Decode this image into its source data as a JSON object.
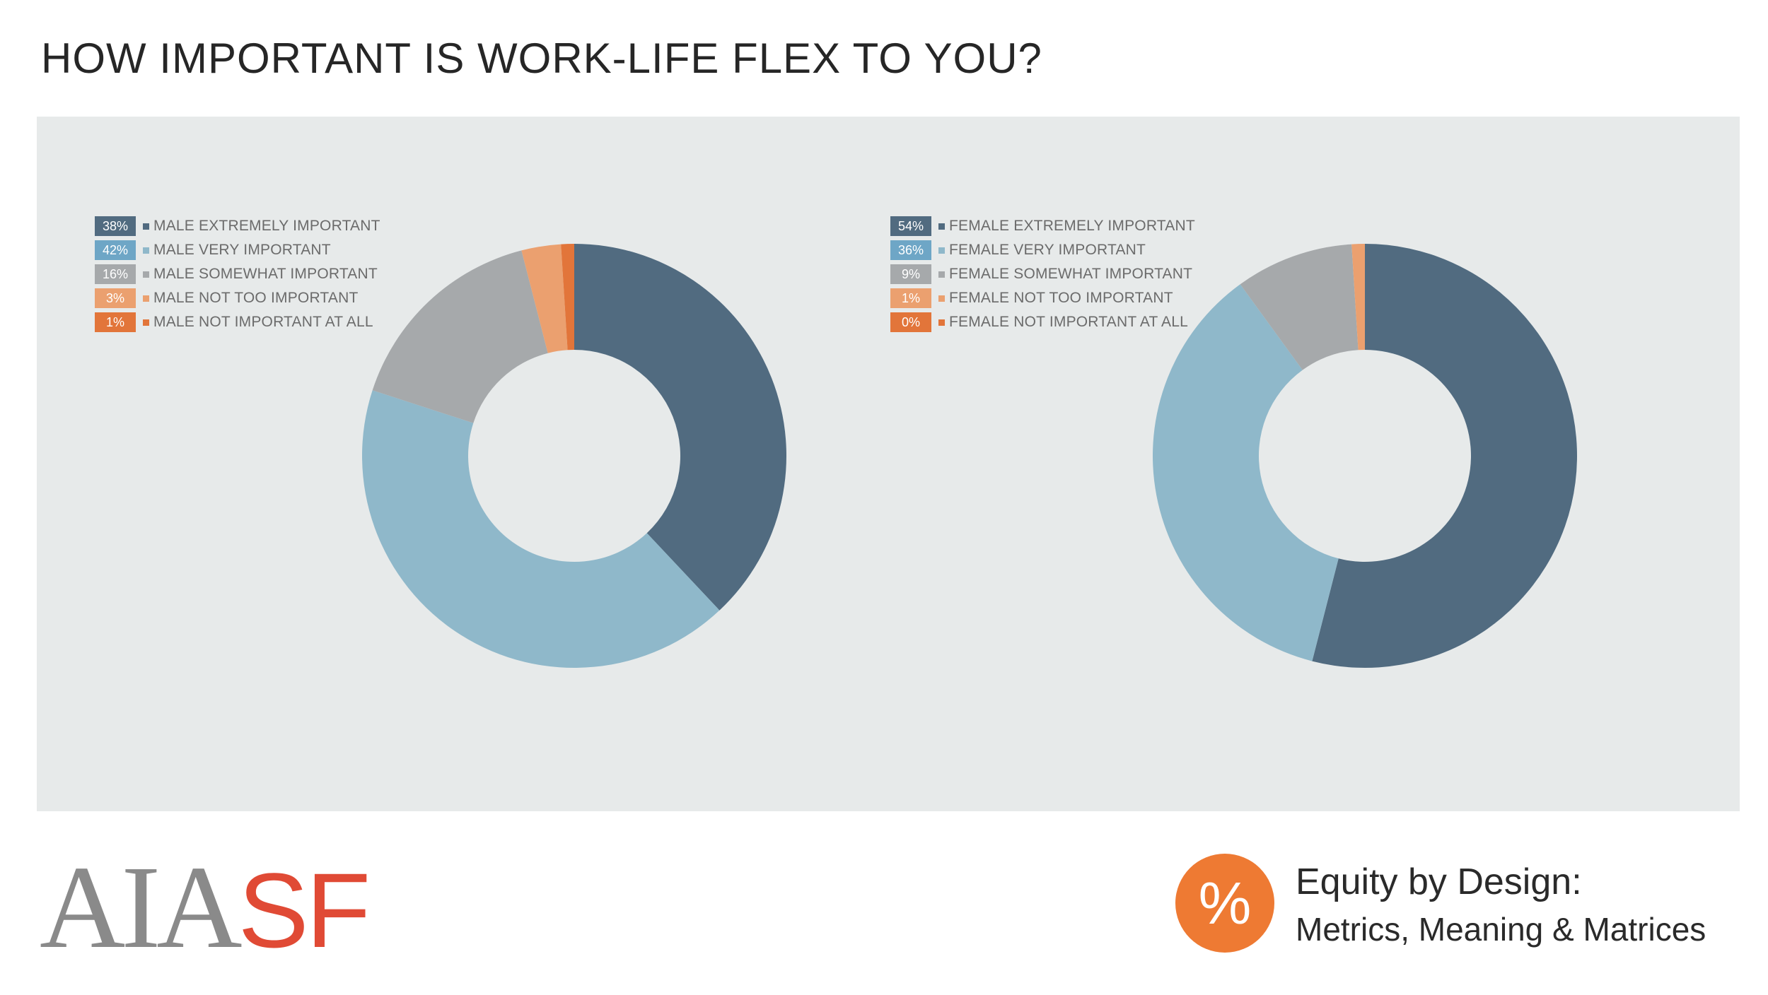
{
  "title": "HOW IMPORTANT IS WORK-LIFE FLEX TO YOU?",
  "colors": {
    "extremely": "#516b80",
    "very": "#8fb8ca",
    "somewhat": "#a6a9ab",
    "not_too": "#eba06f",
    "not_at_all": "#e2753a",
    "badge_very": "#6ea6c6",
    "panel": "#e7eaea"
  },
  "chart_data": [
    {
      "type": "pie",
      "categories": [
        "MALE EXTREMELY IMPORTANT",
        "MALE VERY IMPORTANT",
        "MALE SOMEWHAT IMPORTANT",
        "MALE NOT TOO IMPORTANT",
        "MALE NOT IMPORTANT AT ALL"
      ],
      "values": [
        38,
        42,
        16,
        3,
        1
      ],
      "value_labels": [
        "38%",
        "42%",
        "16%",
        "3%",
        "1%"
      ],
      "legend": "top-left"
    },
    {
      "type": "pie",
      "categories": [
        "FEMALE EXTREMELY IMPORTANT",
        "FEMALE VERY IMPORTANT",
        "FEMALE SOMEWHAT IMPORTANT",
        "FEMALE NOT TOO IMPORTANT",
        "FEMALE NOT IMPORTANT AT ALL"
      ],
      "values": [
        54,
        36,
        9,
        1,
        0
      ],
      "value_labels": [
        "54%",
        "36%",
        "9%",
        "1%",
        "0%"
      ],
      "legend": "top-left"
    }
  ],
  "footer": {
    "logo_left": "AIA",
    "logo_right": "SF",
    "badge_symbol": "%",
    "brand_title": "Equity by Design:",
    "brand_subtitle": "Metrics, Meaning & Matrices"
  }
}
